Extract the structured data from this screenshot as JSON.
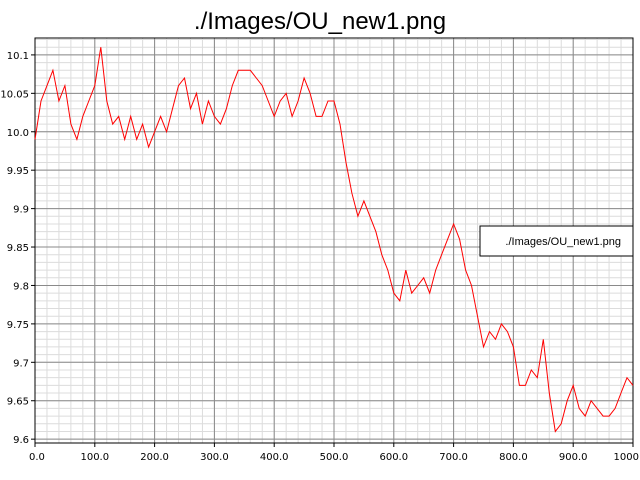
{
  "chart_data": {
    "type": "line",
    "title": "./Images/OU_new1.png",
    "xlabel": "",
    "ylabel": "",
    "xlim": [
      0,
      1000
    ],
    "ylim": [
      9.595,
      10.122
    ],
    "x_ticks": [
      "0.0",
      "100.0",
      "200.0",
      "300.0",
      "400.0",
      "500.0",
      "600.0",
      "700.0",
      "800.0",
      "900.0",
      "1000"
    ],
    "y_ticks": [
      "9.6",
      "9.65",
      "9.7",
      "9.75",
      "9.8",
      "9.85",
      "9.9",
      "9.95",
      "10.0",
      "10.05",
      "10.1"
    ],
    "grid": true,
    "legend": "right",
    "series": [
      {
        "name": "./Images/OU_new1.png",
        "color": "#ff0000",
        "x": [
          0,
          10,
          20,
          30,
          40,
          50,
          60,
          70,
          80,
          90,
          100,
          110,
          120,
          130,
          140,
          150,
          160,
          170,
          180,
          190,
          200,
          210,
          220,
          230,
          240,
          250,
          260,
          270,
          280,
          290,
          300,
          310,
          320,
          330,
          340,
          350,
          360,
          370,
          380,
          390,
          400,
          410,
          420,
          430,
          440,
          450,
          460,
          470,
          480,
          490,
          500,
          510,
          520,
          530,
          540,
          550,
          560,
          570,
          580,
          590,
          600,
          610,
          620,
          630,
          640,
          650,
          660,
          670,
          680,
          690,
          700,
          710,
          720,
          730,
          740,
          750,
          760,
          770,
          780,
          790,
          800,
          810,
          820,
          830,
          840,
          850,
          860,
          870,
          880,
          890,
          900,
          910,
          920,
          930,
          940,
          950,
          960,
          970,
          980,
          990,
          1000
        ],
        "y": [
          9.99,
          10.04,
          10.06,
          10.08,
          10.04,
          10.06,
          10.01,
          9.99,
          10.02,
          10.04,
          10.06,
          10.11,
          10.04,
          10.01,
          10.02,
          9.99,
          10.02,
          9.99,
          10.01,
          9.98,
          10.0,
          10.02,
          10.0,
          10.03,
          10.06,
          10.07,
          10.03,
          10.05,
          10.01,
          10.04,
          10.02,
          10.01,
          10.03,
          10.06,
          10.08,
          10.08,
          10.08,
          10.07,
          10.06,
          10.04,
          10.02,
          10.04,
          10.05,
          10.02,
          10.04,
          10.07,
          10.05,
          10.02,
          10.02,
          10.04,
          10.04,
          10.01,
          9.96,
          9.92,
          9.89,
          9.91,
          9.89,
          9.87,
          9.84,
          9.82,
          9.79,
          9.78,
          9.82,
          9.79,
          9.8,
          9.81,
          9.79,
          9.82,
          9.84,
          9.86,
          9.88,
          9.86,
          9.82,
          9.8,
          9.76,
          9.72,
          9.74,
          9.73,
          9.75,
          9.74,
          9.72,
          9.67,
          9.67,
          9.69,
          9.68,
          9.73,
          9.66,
          9.61,
          9.62,
          9.65,
          9.67,
          9.64,
          9.63,
          9.65,
          9.64,
          9.63,
          9.63,
          9.64,
          9.66,
          9.68,
          9.67
        ]
      }
    ]
  }
}
